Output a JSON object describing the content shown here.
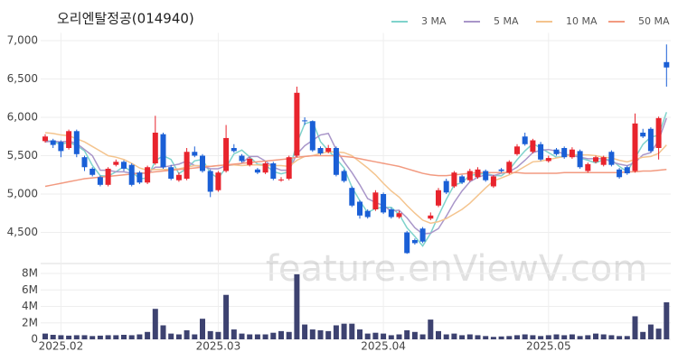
{
  "chart_data": [
    {
      "type": "candlestick",
      "title": "오리엔탈정공(014940)",
      "categories": [
        null,
        null,
        "2025.02",
        null,
        null,
        null,
        null,
        null,
        null,
        null,
        null,
        null,
        null,
        null,
        null,
        null,
        null,
        null,
        null,
        null,
        null,
        null,
        "2025.03",
        null,
        null,
        null,
        null,
        null,
        null,
        null,
        null,
        null,
        null,
        null,
        null,
        null,
        null,
        null,
        null,
        null,
        null,
        null,
        null,
        "2025.04",
        null,
        null,
        null,
        null,
        null,
        null,
        null,
        null,
        null,
        null,
        null,
        null,
        null,
        null,
        null,
        null,
        null,
        null,
        null,
        null,
        "2025.05",
        null,
        null,
        null,
        null,
        null,
        null,
        null,
        null,
        null,
        null,
        null,
        null,
        null,
        null,
        null
      ],
      "open": [
        5690,
        5700,
        5680,
        5600,
        5820,
        5480,
        5330,
        5220,
        5120,
        5380,
        5420,
        5380,
        5280,
        5150,
        5400,
        5780,
        5350,
        5180,
        5200,
        5550,
        5500,
        5300,
        5050,
        5300,
        5600,
        5500,
        5380,
        5320,
        5280,
        5400,
        5180,
        5200,
        5500,
        5960,
        5950,
        5600,
        5550,
        5600,
        5300,
        5080,
        4900,
        4780,
        4800,
        5000,
        4800,
        4700,
        4500,
        4400,
        4550,
        4680,
        4850,
        5170,
        5100,
        5230,
        5180,
        5220,
        5300,
        5100,
        5320,
        5280,
        5520,
        5750,
        5550,
        5650,
        5430,
        5580,
        5600,
        5480,
        5560,
        5300,
        5420,
        5380,
        5550,
        5320,
        5350,
        5300,
        5800,
        5850,
        5600,
        6720
      ],
      "high": [
        5780,
        5720,
        5700,
        5840,
        5840,
        5500,
        5350,
        5240,
        5350,
        5450,
        5440,
        5400,
        5300,
        5370,
        6020,
        5800,
        5380,
        5280,
        5600,
        5620,
        5520,
        5320,
        5300,
        5900,
        5650,
        5520,
        5480,
        5340,
        5420,
        5420,
        5220,
        5500,
        6400,
        6000,
        5960,
        5620,
        5640,
        5620,
        5320,
        5100,
        4920,
        4800,
        5050,
        5020,
        4820,
        4780,
        4520,
        4420,
        4570,
        4760,
        5080,
        5200,
        5300,
        5250,
        5330,
        5350,
        5320,
        5250,
        5340,
        5440,
        5650,
        5800,
        5720,
        5680,
        5500,
        5600,
        5620,
        5610,
        5580,
        5410,
        5500,
        5500,
        5570,
        5340,
        5370,
        6050,
        5850,
        5870,
        6010,
        6950
      ],
      "low": [
        5670,
        5600,
        5480,
        5580,
        5480,
        5300,
        5230,
        5100,
        5100,
        5360,
        5300,
        5100,
        5130,
        5130,
        5380,
        5330,
        5180,
        5160,
        5180,
        5480,
        5280,
        4960,
        5030,
        5280,
        5540,
        5410,
        5360,
        5260,
        5260,
        5180,
        5160,
        5180,
        5480,
        5900,
        5550,
        5510,
        5530,
        5230,
        5150,
        4830,
        4680,
        4680,
        4780,
        4740,
        4680,
        4680,
        4220,
        4340,
        4360,
        4660,
        4830,
        5000,
        5080,
        5130,
        5160,
        5200,
        5160,
        5080,
        5280,
        5260,
        5500,
        5630,
        5530,
        5430,
        5410,
        5500,
        5460,
        5460,
        5330,
        5280,
        5400,
        5360,
        5360,
        5200,
        5250,
        5280,
        5730,
        5540,
        5450,
        6400
      ],
      "close": [
        5750,
        5640,
        5560,
        5820,
        5520,
        5350,
        5250,
        5120,
        5330,
        5420,
        5330,
        5120,
        5150,
        5350,
        5800,
        5350,
        5200,
        5250,
        5550,
        5500,
        5300,
        5030,
        5280,
        5730,
        5560,
        5430,
        5460,
        5280,
        5400,
        5200,
        5190,
        5480,
        6320,
        5950,
        5570,
        5530,
        5600,
        5250,
        5170,
        4850,
        4720,
        4700,
        5020,
        4760,
        4700,
        4750,
        4230,
        4360,
        4380,
        4720,
        5050,
        5020,
        5280,
        5150,
        5300,
        5320,
        5180,
        5230,
        5300,
        5420,
        5620,
        5650,
        5700,
        5450,
        5470,
        5520,
        5480,
        5580,
        5350,
        5390,
        5480,
        5480,
        5380,
        5220,
        5270,
        5920,
        5750,
        5560,
        5990,
        6650
      ],
      "up_color": "#e8242d",
      "down_color": "#1a5fd6",
      "ylim": [
        4200,
        7100
      ],
      "yticks": [
        {
          "value": 7000,
          "label": "7,000"
        },
        {
          "value": 6500,
          "label": "6,500"
        },
        {
          "value": 6000,
          "label": "6,000"
        },
        {
          "value": 5500,
          "label": "5,500"
        },
        {
          "value": 5000,
          "label": "5,000"
        },
        {
          "value": 4500,
          "label": "4,500"
        }
      ],
      "grid": true,
      "moving_averages": [
        {
          "name": "3 MA",
          "color": "#7fd3cc",
          "values": [
            5700,
            5680,
            5650,
            5673,
            5633,
            5563,
            5373,
            5240,
            5233,
            5290,
            5360,
            5290,
            5200,
            5207,
            5433,
            5500,
            5450,
            5267,
            5333,
            5433,
            5450,
            5277,
            5203,
            5347,
            5523,
            5573,
            5483,
            5390,
            5380,
            5293,
            5263,
            5290,
            5663,
            5917,
            5947,
            5683,
            5567,
            5460,
            5340,
            5090,
            4913,
            4757,
            4813,
            4827,
            4827,
            4737,
            4560,
            4447,
            4323,
            4487,
            4717,
            4930,
            5117,
            5150,
            5243,
            5257,
            5267,
            5243,
            5237,
            5317,
            5447,
            5563,
            5657,
            5600,
            5540,
            5480,
            5490,
            5527,
            5470,
            5440,
            5407,
            5450,
            5447,
            5360,
            5290,
            5470,
            5647,
            5743,
            5767,
            6067
          ]
        },
        {
          "name": "5 MA",
          "color": "#a996c9",
          "values": [
            5680,
            5690,
            5680,
            5690,
            5660,
            5580,
            5500,
            5310,
            5310,
            5290,
            5290,
            5270,
            5270,
            5270,
            5350,
            5350,
            5370,
            5390,
            5430,
            5370,
            5360,
            5330,
            5330,
            5370,
            5380,
            5400,
            5490,
            5490,
            5430,
            5350,
            5310,
            5310,
            5520,
            5630,
            5700,
            5770,
            5790,
            5580,
            5420,
            5280,
            5120,
            4940,
            4890,
            4850,
            4780,
            4790,
            4690,
            4560,
            4480,
            4490,
            4550,
            4710,
            4890,
            5040,
            5160,
            5220,
            5250,
            5240,
            5270,
            5290,
            5350,
            5440,
            5540,
            5570,
            5580,
            5560,
            5520,
            5500,
            5480,
            5460,
            5460,
            5460,
            5420,
            5390,
            5370,
            5410,
            5510,
            5540,
            5700,
            5990
          ]
        },
        {
          "name": "10 MA",
          "color": "#f4c48e",
          "values": [
            5800,
            5790,
            5770,
            5760,
            5720,
            5680,
            5620,
            5560,
            5500,
            5480,
            5450,
            5400,
            5340,
            5310,
            5320,
            5320,
            5320,
            5330,
            5350,
            5370,
            5370,
            5360,
            5370,
            5380,
            5380,
            5370,
            5380,
            5380,
            5370,
            5370,
            5370,
            5360,
            5440,
            5490,
            5500,
            5530,
            5550,
            5550,
            5540,
            5500,
            5420,
            5340,
            5250,
            5140,
            5040,
            4960,
            4850,
            4750,
            4660,
            4620,
            4640,
            4680,
            4740,
            4800,
            4880,
            4980,
            5080,
            5170,
            5210,
            5250,
            5300,
            5360,
            5420,
            5430,
            5450,
            5470,
            5490,
            5510,
            5510,
            5510,
            5500,
            5480,
            5470,
            5440,
            5420,
            5450,
            5480,
            5490,
            5530,
            5640
          ]
        },
        {
          "name": "50 MA",
          "color": "#f29a80",
          "values": [
            5100,
            5120,
            5140,
            5160,
            5180,
            5200,
            5210,
            5220,
            5230,
            5240,
            5250,
            5260,
            5270,
            5280,
            5290,
            5300,
            5310,
            5320,
            5330,
            5340,
            5350,
            5360,
            5370,
            5380,
            5390,
            5400,
            5410,
            5420,
            5430,
            5440,
            5450,
            5460,
            5480,
            5490,
            5500,
            5500,
            5500,
            5500,
            5490,
            5480,
            5460,
            5440,
            5420,
            5400,
            5380,
            5360,
            5330,
            5300,
            5270,
            5250,
            5240,
            5240,
            5250,
            5260,
            5270,
            5280,
            5280,
            5280,
            5280,
            5280,
            5280,
            5270,
            5270,
            5270,
            5270,
            5270,
            5280,
            5280,
            5280,
            5280,
            5280,
            5280,
            5280,
            5280,
            5290,
            5290,
            5300,
            5300,
            5310,
            5320
          ]
        }
      ],
      "watermark": "feature.enViewV.com"
    },
    {
      "type": "bar",
      "color": "#3d4270",
      "values": [
        700000,
        550000,
        500000,
        450000,
        500000,
        500000,
        400000,
        450000,
        500000,
        500000,
        550000,
        500000,
        600000,
        900000,
        3700000,
        1700000,
        700000,
        600000,
        1100000,
        600000,
        2500000,
        1000000,
        900000,
        5400000,
        1200000,
        700000,
        600000,
        600000,
        600000,
        800000,
        1000000,
        900000,
        7900000,
        1800000,
        1200000,
        1100000,
        1000000,
        1700000,
        1900000,
        1900000,
        1200000,
        700000,
        800000,
        700000,
        500000,
        600000,
        1100000,
        900000,
        600000,
        2400000,
        1000000,
        600000,
        700000,
        500000,
        600000,
        500000,
        400000,
        300000,
        350000,
        400000,
        500000,
        600000,
        500000,
        400000,
        500000,
        600000,
        500000,
        600000,
        400000,
        500000,
        700000,
        600000,
        500000,
        400000,
        400000,
        2800000,
        900000,
        1800000,
        1300000,
        4500000
      ],
      "ylim": [
        0,
        8000000
      ],
      "yticks": [
        0,
        {
          "value": 2000000,
          "label": "2M"
        },
        {
          "value": 4000000,
          "label": "4M"
        },
        {
          "value": 6000000,
          "label": "6M"
        },
        {
          "value": 8000000,
          "label": "8M"
        }
      ]
    }
  ]
}
